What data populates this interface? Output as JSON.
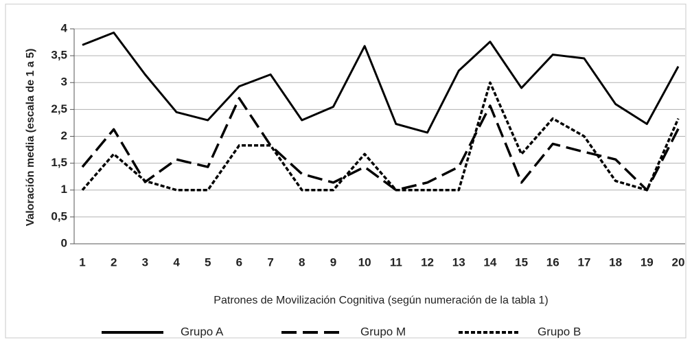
{
  "chart_data": {
    "type": "line",
    "y_label": "Valoración media (escala de 1 a 5)",
    "x_label": "Patrones de Movilización Cognitiva (según numeración de la tabla 1)",
    "categories": [
      "1",
      "2",
      "3",
      "4",
      "5",
      "6",
      "7",
      "8",
      "9",
      "10",
      "11",
      "12",
      "13",
      "14",
      "15",
      "16",
      "17",
      "18",
      "19",
      "20"
    ],
    "series": [
      {
        "name": "Grupo A",
        "color": "#000000",
        "line_style": "solid",
        "values": [
          3.7,
          3.93,
          3.15,
          2.45,
          2.3,
          2.93,
          3.15,
          2.3,
          2.55,
          3.68,
          2.23,
          2.07,
          3.22,
          3.76,
          2.9,
          3.52,
          3.45,
          2.6,
          2.23,
          3.3
        ]
      },
      {
        "name": "Grupo M",
        "color": "#000000",
        "line_style": "dashed",
        "values": [
          1.43,
          2.13,
          1.15,
          1.57,
          1.43,
          2.71,
          1.83,
          1.3,
          1.14,
          1.43,
          1.0,
          1.14,
          1.43,
          2.57,
          1.14,
          1.86,
          1.71,
          1.57,
          1.0,
          2.14
        ]
      },
      {
        "name": "Grupo B",
        "color": "#000000",
        "line_style": "dotted",
        "values": [
          1.0,
          1.67,
          1.17,
          1.0,
          1.0,
          1.83,
          1.83,
          1.0,
          1.0,
          1.67,
          1.0,
          1.0,
          1.0,
          3.0,
          1.67,
          2.33,
          2.0,
          1.17,
          1.0,
          2.33
        ]
      }
    ],
    "ylim": [
      0,
      4
    ],
    "yticks": [
      0,
      {
        "value": 0.5,
        "label": "0,5"
      },
      1,
      {
        "value": 1.5,
        "label": "1,5"
      },
      2,
      {
        "value": 2.5,
        "label": "2,5"
      },
      3,
      {
        "value": 3.5,
        "label": "3,5"
      },
      4
    ],
    "grid": true,
    "legend": "bottom"
  }
}
